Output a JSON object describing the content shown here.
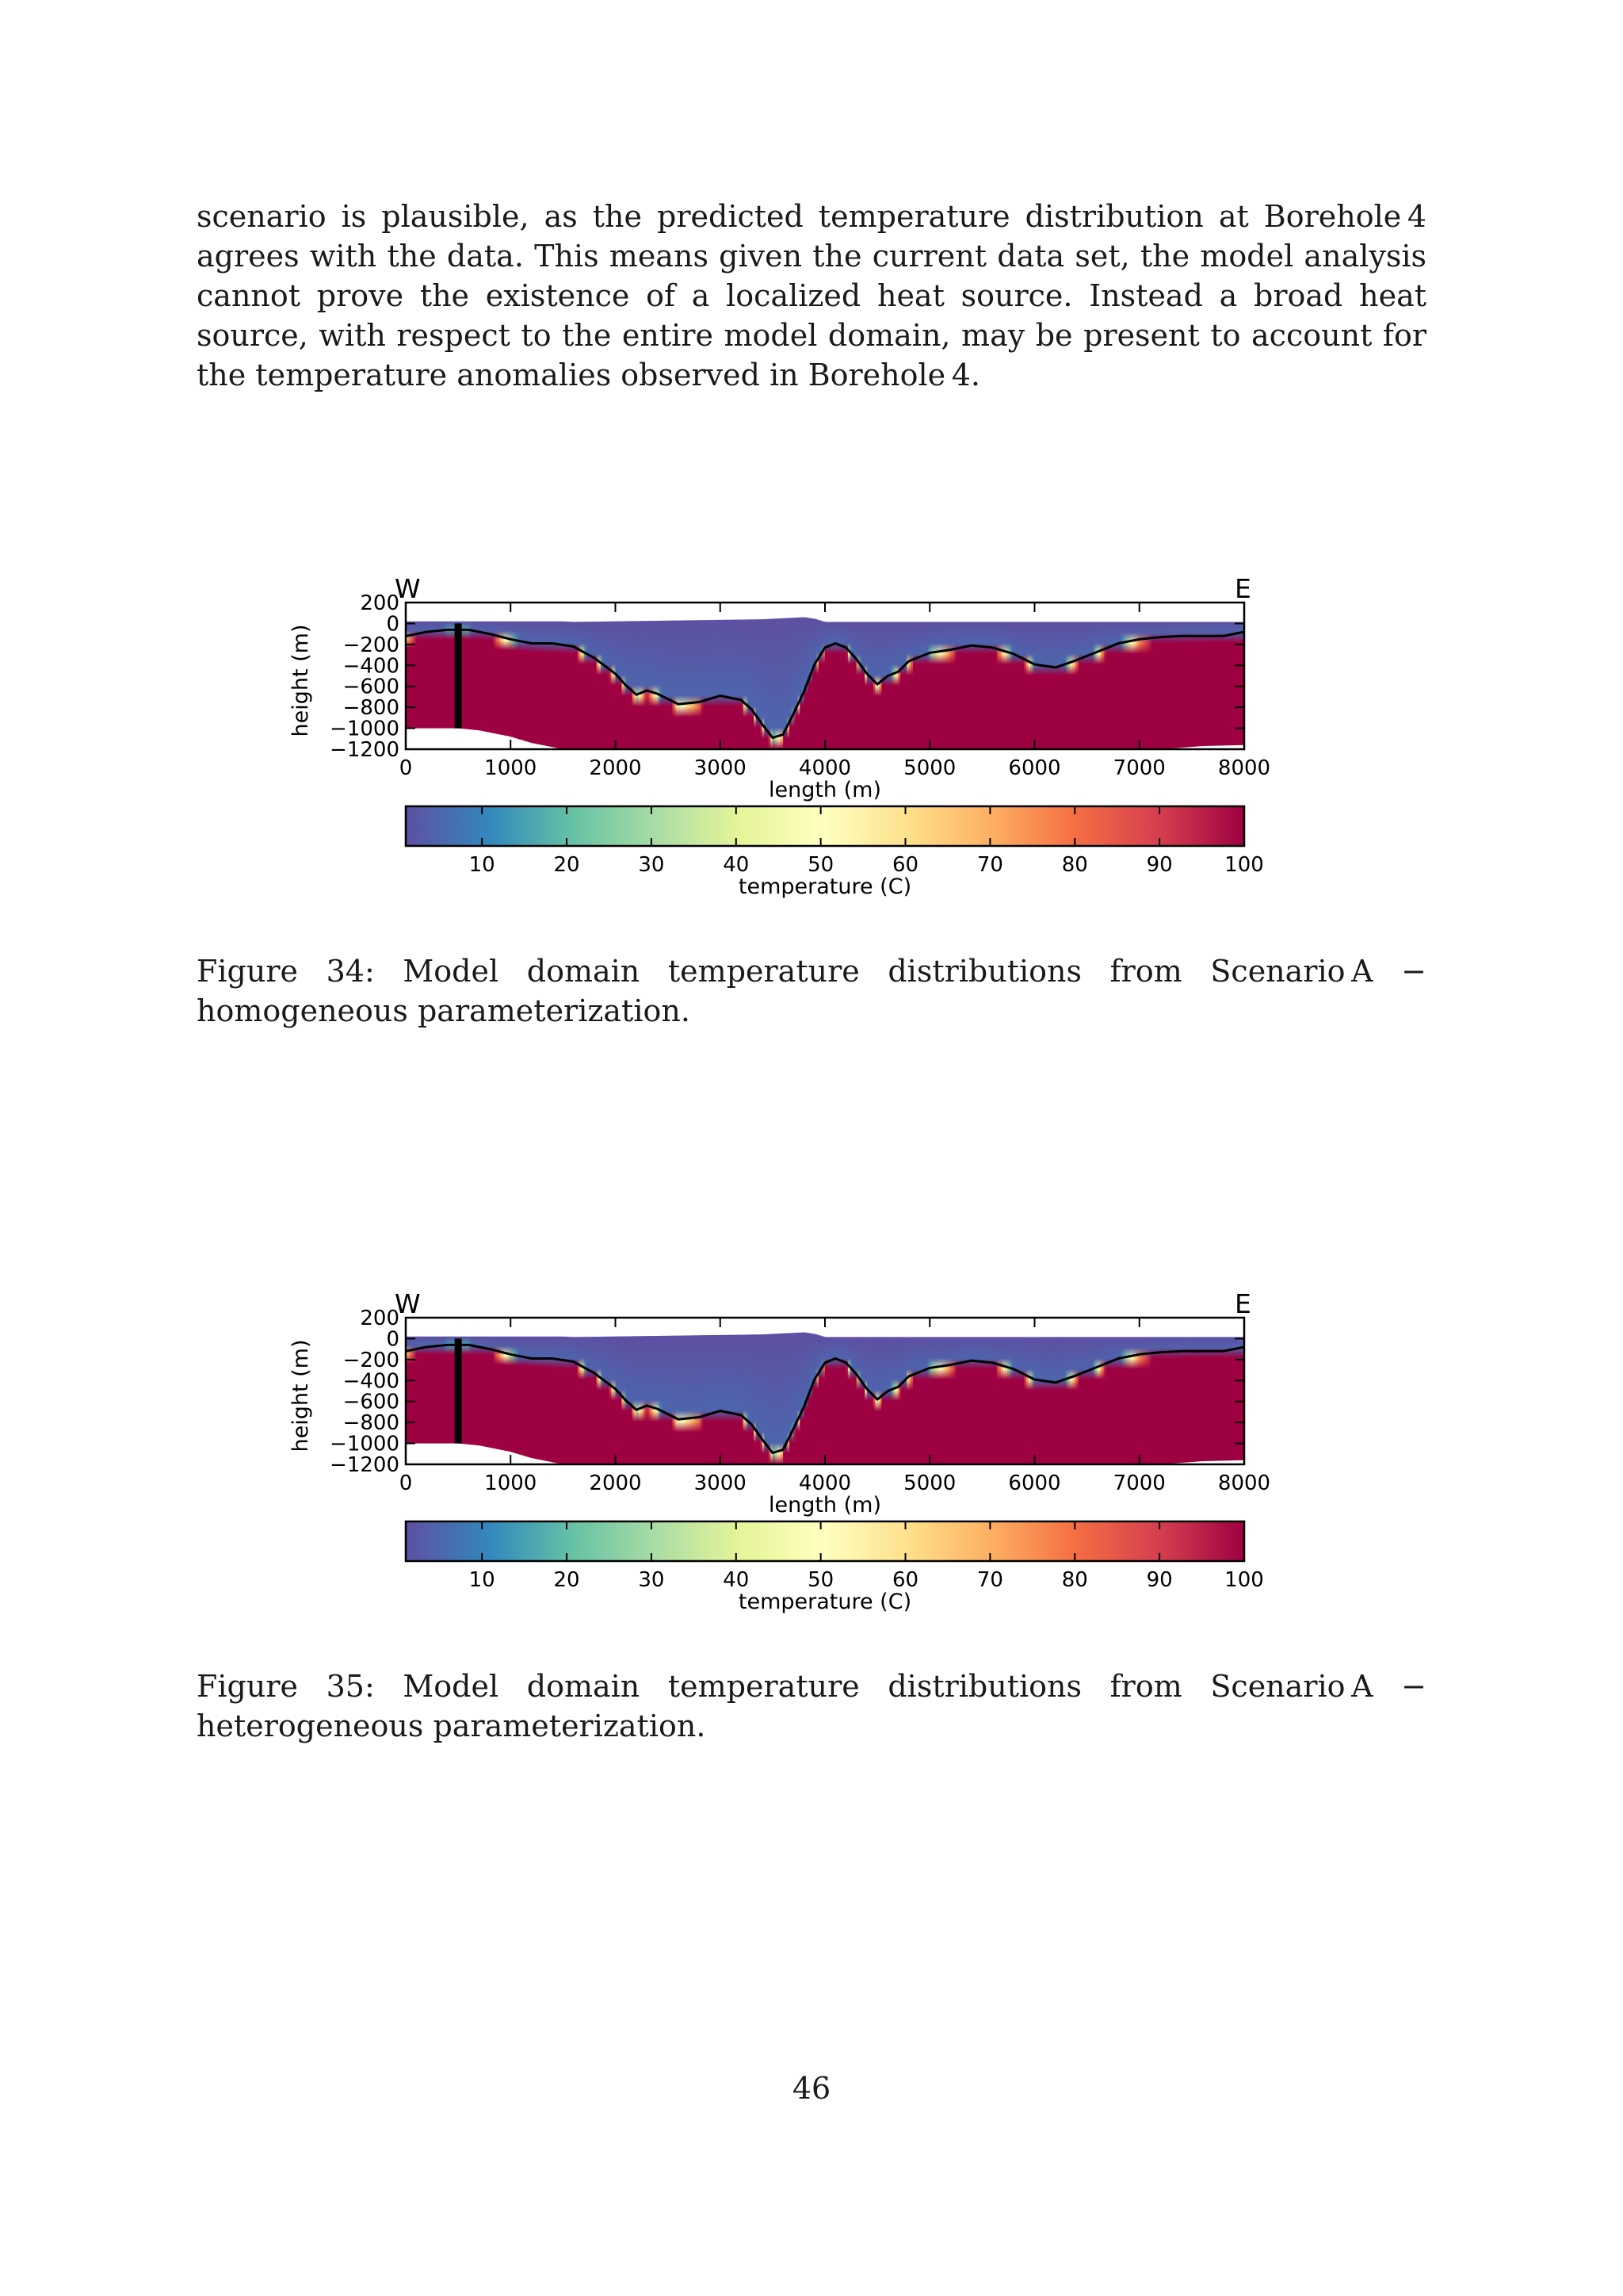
{
  "body_paragraph": "scenario is plausible, as the predicted temperature distribution at Borehole 4 agrees with the data.  This means given the current data set, the model analysis cannot prove the existence of a localized heat source.  Instead a broad heat source, with respect to the entire model domain, may be present to account for the temperature anomalies observed in Borehole 4.",
  "figures": [
    {
      "caption": "Figure 34:  Model domain temperature distributions from Scenario A − homogeneous parameterization.",
      "chart_data": {
        "type": "heatmap",
        "title": "",
        "xlabel": "length (m)",
        "ylabel": "height (m)",
        "xlim": [
          0,
          8000
        ],
        "ylim": [
          -1200,
          200
        ],
        "x_ticks": [
          0,
          1000,
          2000,
          3000,
          4000,
          5000,
          6000,
          7000,
          8000
        ],
        "y_ticks": [
          200,
          0,
          -200,
          -400,
          -600,
          -800,
          -1000,
          -1200
        ],
        "corner_labels": {
          "left": "W",
          "right": "E"
        },
        "colorbar": {
          "label": "temperature (C)",
          "ticks": [
            10,
            20,
            30,
            40,
            50,
            60,
            70,
            80,
            90,
            100
          ],
          "range": [
            1,
            100
          ],
          "colormap": "Spectral_r"
        },
        "surface_profile": {
          "x": [
            0,
            1500,
            1600,
            3400,
            3800,
            3900,
            4000,
            8000
          ],
          "y": [
            20,
            20,
            15,
            40,
            60,
            45,
            15,
            15
          ]
        },
        "bottom_profile": {
          "x": [
            0,
            500,
            700,
            800,
            900,
            1000,
            1100,
            1200,
            1300,
            1400,
            1500,
            1600,
            1700,
            7200,
            7600,
            8000
          ],
          "y": [
            -1000,
            -1000,
            -1020,
            -1040,
            -1060,
            -1080,
            -1110,
            -1140,
            -1160,
            -1180,
            -1200,
            -1200,
            -1200,
            -1200,
            -1170,
            -1160
          ]
        },
        "isoline": {
          "x": [
            0,
            200,
            400,
            600,
            800,
            1000,
            1200,
            1400,
            1600,
            1800,
            2000,
            2100,
            2200,
            2300,
            2400,
            2600,
            2800,
            3000,
            3200,
            3300,
            3400,
            3500,
            3600,
            3700,
            3800,
            3900,
            4000,
            4100,
            4200,
            4300,
            4400,
            4500,
            4600,
            4700,
            4800,
            5000,
            5200,
            5400,
            5600,
            5800,
            6000,
            6200,
            6400,
            6600,
            6800,
            7000,
            7200,
            7400,
            7600,
            7800,
            8000
          ],
          "y": [
            -120,
            -80,
            -60,
            -60,
            -100,
            -150,
            -190,
            -190,
            -220,
            -330,
            -480,
            -590,
            -680,
            -640,
            -670,
            -770,
            -750,
            -690,
            -730,
            -820,
            -960,
            -1090,
            -1060,
            -860,
            -650,
            -390,
            -230,
            -190,
            -230,
            -340,
            -480,
            -580,
            -500,
            -460,
            -360,
            -280,
            -250,
            -210,
            -230,
            -290,
            -390,
            -420,
            -350,
            -270,
            -190,
            -150,
            -130,
            -120,
            -120,
            -120,
            -80
          ]
        },
        "borehole": {
          "x": 500,
          "y_top": 0,
          "y_bottom": -1000
        }
      }
    },
    {
      "caption": "Figure 35:  Model domain temperature distributions from Scenario A − heterogeneous parameterization.",
      "chart_data": {
        "type": "heatmap",
        "title": "",
        "xlabel": "length (m)",
        "ylabel": "height (m)",
        "xlim": [
          0,
          8000
        ],
        "ylim": [
          -1200,
          200
        ],
        "x_ticks": [
          0,
          1000,
          2000,
          3000,
          4000,
          5000,
          6000,
          7000,
          8000
        ],
        "y_ticks": [
          200,
          0,
          -200,
          -400,
          -600,
          -800,
          -1000,
          -1200
        ],
        "corner_labels": {
          "left": "W",
          "right": "E"
        },
        "colorbar": {
          "label": "temperature (C)",
          "ticks": [
            10,
            20,
            30,
            40,
            50,
            60,
            70,
            80,
            90,
            100
          ],
          "range": [
            1,
            100
          ],
          "colormap": "Spectral_r"
        },
        "surface_profile": {
          "x": [
            0,
            1500,
            1600,
            3400,
            3800,
            3900,
            4000,
            8000
          ],
          "y": [
            20,
            20,
            15,
            40,
            60,
            45,
            15,
            15
          ]
        },
        "bottom_profile": {
          "x": [
            0,
            500,
            700,
            800,
            900,
            1000,
            1100,
            1200,
            1300,
            1400,
            1500,
            1600,
            1700,
            7200,
            7600,
            8000
          ],
          "y": [
            -1000,
            -1000,
            -1020,
            -1040,
            -1060,
            -1080,
            -1110,
            -1140,
            -1160,
            -1180,
            -1200,
            -1200,
            -1200,
            -1200,
            -1170,
            -1160
          ]
        },
        "isoline": {
          "x": [
            0,
            200,
            400,
            600,
            800,
            1000,
            1200,
            1400,
            1600,
            1800,
            2000,
            2100,
            2200,
            2300,
            2400,
            2600,
            2800,
            3000,
            3200,
            3300,
            3400,
            3500,
            3600,
            3700,
            3800,
            3900,
            4000,
            4100,
            4200,
            4300,
            4400,
            4500,
            4600,
            4700,
            4800,
            5000,
            5200,
            5400,
            5600,
            5800,
            6000,
            6200,
            6400,
            6600,
            6800,
            7000,
            7200,
            7400,
            7600,
            7800,
            8000
          ],
          "y": [
            -120,
            -80,
            -60,
            -60,
            -100,
            -150,
            -190,
            -190,
            -220,
            -330,
            -480,
            -590,
            -680,
            -640,
            -670,
            -770,
            -750,
            -690,
            -730,
            -820,
            -960,
            -1090,
            -1060,
            -860,
            -650,
            -390,
            -230,
            -190,
            -230,
            -340,
            -480,
            -580,
            -500,
            -460,
            -360,
            -280,
            -250,
            -210,
            -230,
            -290,
            -390,
            -420,
            -350,
            -270,
            -190,
            -150,
            -130,
            -120,
            -120,
            -120,
            -80
          ]
        },
        "borehole": {
          "x": 500,
          "y_top": 0,
          "y_bottom": -1000
        }
      }
    }
  ],
  "page_number": "46"
}
